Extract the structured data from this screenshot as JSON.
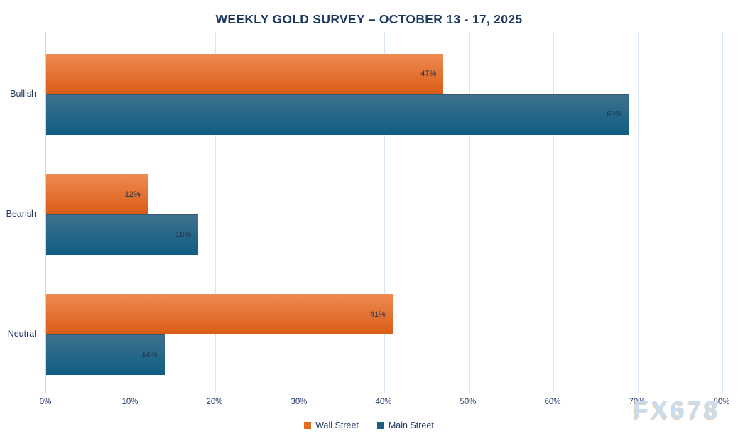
{
  "title": "WEEKLY GOLD SURVEY – OCTOBER 13 - 17, 2025",
  "watermark": "FX678",
  "chart_data": {
    "type": "bar",
    "orientation": "horizontal",
    "title": "WEEKLY GOLD SURVEY – OCTOBER 13 - 17, 2025",
    "categories": [
      "Bullish",
      "Bearish",
      "Neutral"
    ],
    "series": [
      {
        "name": "Wall Street",
        "values": [
          47,
          12,
          41
        ],
        "color": "#E56B24",
        "gradient_top": "#EE8A52",
        "gradient_bottom": "#D95C15"
      },
      {
        "name": "Main Street",
        "values": [
          69,
          18,
          14
        ],
        "color": "#1E5D80",
        "gradient_top": "#40718F",
        "gradient_bottom": "#0E5E82"
      }
    ],
    "data_labels": [
      "47%",
      "69%",
      "12%",
      "18%",
      "41%",
      "14%"
    ],
    "value_suffix": "%",
    "xlabel": "",
    "ylabel": "",
    "xlim": [
      0,
      80
    ],
    "tick_step": 10,
    "tick_labels": [
      "0%",
      "10%",
      "20%",
      "30%",
      "40%",
      "50%",
      "60%",
      "70%",
      "80%"
    ],
    "grid": "vertical-only",
    "legend_position": "bottom",
    "data_label_position": "inside-end"
  },
  "colors": {
    "title": "#1C3A5E",
    "text": "#1F3864",
    "gridline": "#D9E6F5",
    "axis_line": "#C8D8EA",
    "bar_label": "#1E3350",
    "watermark": "#C9DDF0",
    "background": "#FFFFFF"
  }
}
